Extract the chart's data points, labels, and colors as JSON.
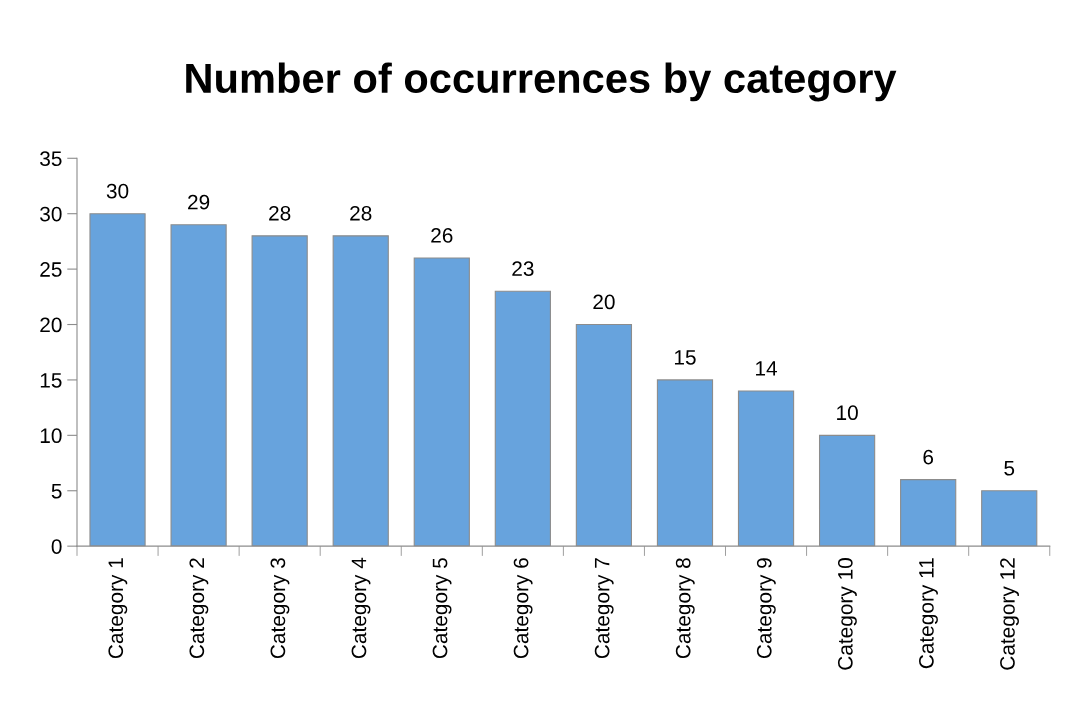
{
  "chart_data": {
    "type": "bar",
    "title": "Number of occurrences by category",
    "categories": [
      "Category 1",
      "Category 2",
      "Category 3",
      "Category 4",
      "Category 5",
      "Category 6",
      "Category 7",
      "Category 8",
      "Category 9",
      "Category 10",
      "Category 11",
      "Category 12"
    ],
    "values": [
      30,
      29,
      28,
      28,
      26,
      23,
      20,
      15,
      14,
      10,
      6,
      5
    ],
    "color": "#67a3dd",
    "ylim": [
      0,
      35
    ],
    "yticks": [
      0,
      5,
      10,
      15,
      20,
      25,
      30,
      35
    ],
    "data_labels": true,
    "grid": false
  }
}
